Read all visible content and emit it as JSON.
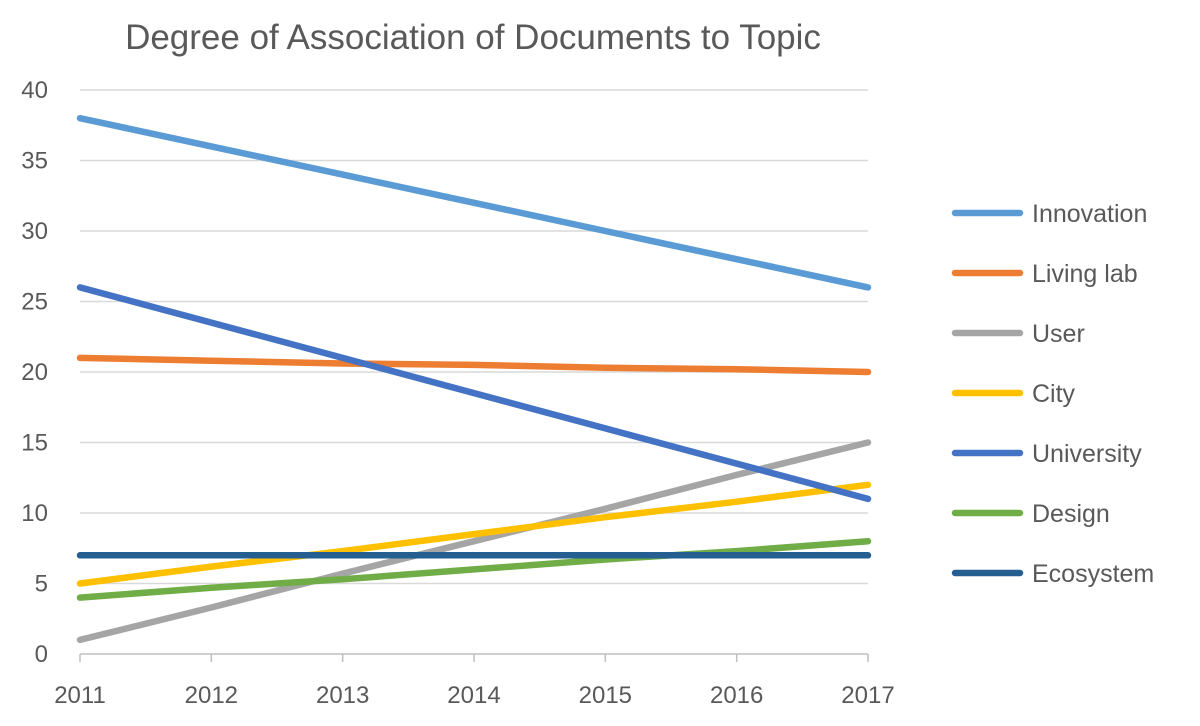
{
  "chart_data": {
    "type": "line",
    "title": "Degree of Association of Documents to Topic",
    "xlabel": "",
    "ylabel": "",
    "x": [
      "2011",
      "2012",
      "2013",
      "2014",
      "2015",
      "2016",
      "2017"
    ],
    "ylim": [
      0,
      40
    ],
    "yticks": [
      "0",
      "5",
      "10",
      "15",
      "20",
      "25",
      "30",
      "35",
      "40"
    ],
    "grid": true,
    "legend_position": "right",
    "series": [
      {
        "name": "Innovation",
        "color": "#5B9BD5",
        "values": [
          38,
          36,
          34,
          32,
          30,
          28,
          26
        ]
      },
      {
        "name": "Living lab",
        "color": "#ED7D31",
        "values": [
          21,
          20.8,
          20.6,
          20.5,
          20.3,
          20.2,
          20
        ]
      },
      {
        "name": "User",
        "color": "#A5A5A5",
        "values": [
          1,
          3.3,
          5.7,
          8,
          10.3,
          12.7,
          15
        ]
      },
      {
        "name": "City",
        "color": "#FFC000",
        "values": [
          5,
          6.2,
          7.3,
          8.5,
          9.7,
          10.8,
          12
        ]
      },
      {
        "name": "University",
        "color": "#4472C4",
        "values": [
          26,
          23.5,
          21,
          18.5,
          16,
          13.5,
          11
        ]
      },
      {
        "name": "Design",
        "color": "#70AD47",
        "values": [
          4,
          4.7,
          5.3,
          6,
          6.7,
          7.3,
          8
        ]
      },
      {
        "name": "Ecosystem",
        "color": "#255E91",
        "values": [
          7,
          7,
          7,
          7,
          7,
          7,
          7
        ]
      }
    ]
  }
}
